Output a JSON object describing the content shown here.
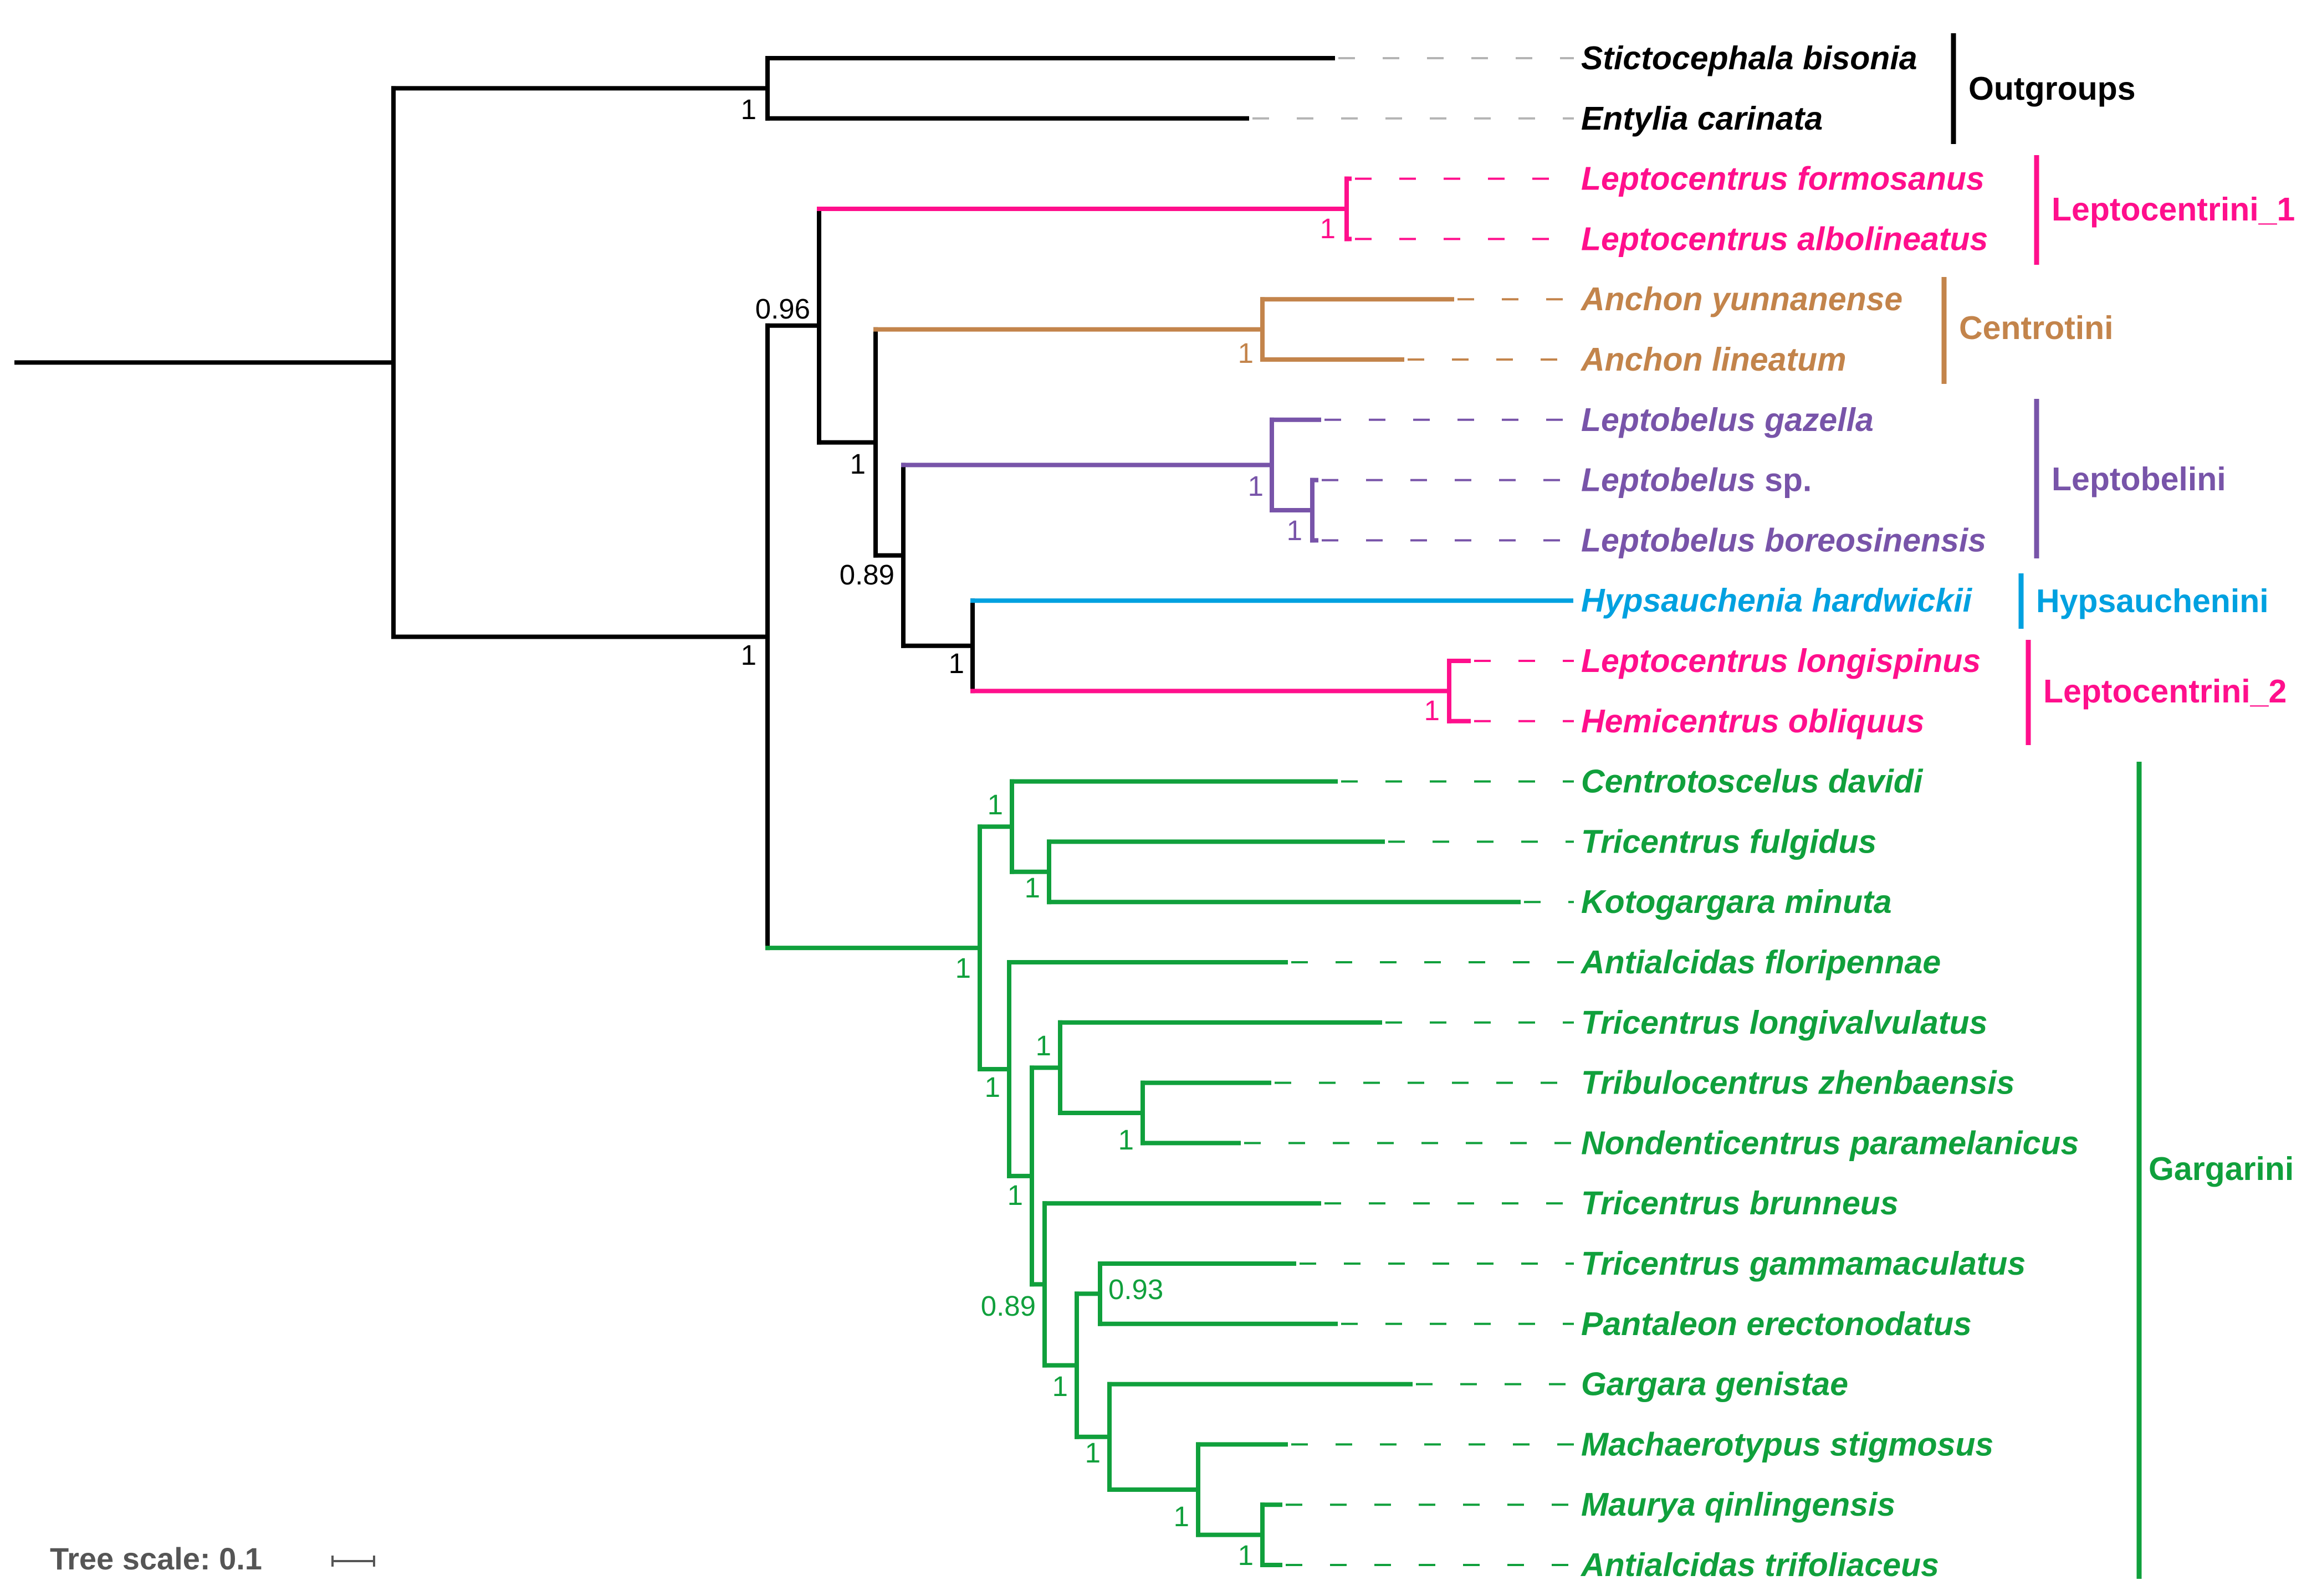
{
  "colors": {
    "outgroups": "#000000",
    "leptocentrini_1": "#ff0f8c",
    "centrotini": "#c3844b",
    "leptobelini": "#7854a9",
    "hypsauchenini": "#00a1e0",
    "leptocentrini_2": "#ff0f8c",
    "gargarini": "#10a03c",
    "dash": "#b4b4b4",
    "scale": "#555555"
  },
  "taxa": [
    {
      "id": "stictocephala",
      "name": "Stictocephala bisonia",
      "group": "outgroups"
    },
    {
      "id": "entylia",
      "name": "Entylia carinata",
      "group": "outgroups"
    },
    {
      "id": "lformosanus",
      "name": "Leptocentrus formosanus",
      "group": "leptocentrini_1"
    },
    {
      "id": "lalbolineatus",
      "name": "Leptocentrus albolineatus",
      "group": "leptocentrini_1"
    },
    {
      "id": "ayunnanense",
      "name": "Anchon yunnanense",
      "group": "centrotini"
    },
    {
      "id": "alineatum",
      "name": "Anchon lineatum",
      "group": "centrotini"
    },
    {
      "id": "lgazella",
      "name": "Leptobelus gazella",
      "group": "leptobelini"
    },
    {
      "id": "lsp",
      "name": "Leptobelus",
      "suffix": " sp.",
      "group": "leptobelini"
    },
    {
      "id": "lboreosinensis",
      "name": "Leptobelus boreosinensis",
      "group": "leptobelini"
    },
    {
      "id": "hhardwickii",
      "name": "Hypsauchenia hardwickii",
      "group": "hypsauchenini"
    },
    {
      "id": "llongispinus",
      "name": "Leptocentrus longispinus",
      "group": "leptocentrini_2"
    },
    {
      "id": "hobliquus",
      "name": "Hemicentrus obliquus",
      "group": "leptocentrini_2"
    },
    {
      "id": "cdavidi",
      "name": "Centrotoscelus davidi",
      "group": "gargarini"
    },
    {
      "id": "tfulgidus",
      "name": "Tricentrus fulgidus",
      "group": "gargarini"
    },
    {
      "id": "kminuta",
      "name": "Kotogargara minuta",
      "group": "gargarini"
    },
    {
      "id": "afloripennae",
      "name": "Antialcidas floripennae",
      "group": "gargarini"
    },
    {
      "id": "tlongivalvulatus",
      "name": "Tricentrus longivalvulatus",
      "group": "gargarini"
    },
    {
      "id": "tzhenbaensis",
      "name": "Tribulocentrus zhenbaensis",
      "group": "gargarini"
    },
    {
      "id": "nparamelanicus",
      "name": "Nondenticentrus paramelanicus",
      "group": "gargarini"
    },
    {
      "id": "tbrunneus",
      "name": "Tricentrus brunneus",
      "group": "gargarini"
    },
    {
      "id": "tgammamaculatus",
      "name": "Tricentrus gammamaculatus",
      "group": "gargarini"
    },
    {
      "id": "perectonodatus",
      "name": "Pantaleon erectonodatus",
      "group": "gargarini"
    },
    {
      "id": "ggenistae",
      "name": "Gargara genistae",
      "group": "gargarini"
    },
    {
      "id": "mstigmosus",
      "name": "Machaerotypus stigmosus",
      "group": "gargarini"
    },
    {
      "id": "mqinlingensis",
      "name": "Maurya qinlingensis",
      "group": "gargarini"
    },
    {
      "id": "atrifoliaceus",
      "name": "Antialcidas trifoliaceus",
      "group": "gargarini"
    }
  ],
  "groups": [
    {
      "id": "outgroups",
      "label": "Outgroups"
    },
    {
      "id": "leptocentrini_1",
      "label": "Leptocentrini_1"
    },
    {
      "id": "centrotini",
      "label": "Centrotini"
    },
    {
      "id": "leptobelini",
      "label": "Leptobelini"
    },
    {
      "id": "hypsauchenini",
      "label": "Hypsauchenini"
    },
    {
      "id": "leptocentrini_2",
      "label": "Leptocentrini_2"
    },
    {
      "id": "gargarini",
      "label": "Gargarini"
    }
  ],
  "support_values": {
    "outgroups": "1",
    "root_ingroup": "1",
    "lep1_centro_etc": "0.96",
    "leptocentrini_1": "1",
    "centro_rest": "1",
    "centrotini": "1",
    "lepto_hyps": "0.89",
    "leptobelini": "1",
    "leptobelus_inner": "1",
    "hyps_lep2": "1",
    "leptocentrini_2": "1",
    "gargarini": "1",
    "g_cdavidi_clade": "1",
    "g_tfulgidus_kminuta": "1",
    "g_rest": "1",
    "g_tlongi_clade": "1",
    "g_tzhen_nparam": "1",
    "g_rest2": "1",
    "g_tbrunneus_rest": "0.89",
    "g_tgamma_perecto": "0.93",
    "g_gg_rest": "1",
    "g_mach_rest": "1",
    "g_maurya_anti": "1"
  },
  "scale": {
    "label": "Tree scale: 0.1"
  }
}
